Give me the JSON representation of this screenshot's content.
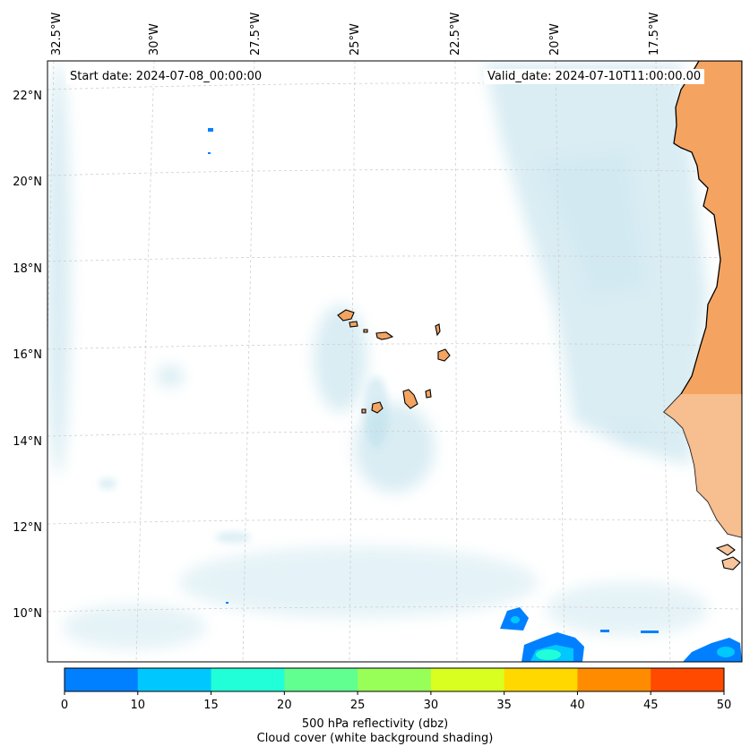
{
  "map": {
    "longitude_labels": [
      "32.5°W",
      "30°W",
      "27.5°W",
      "25°W",
      "22.5°W",
      "20°W",
      "17.5°W"
    ],
    "latitude_labels": [
      "22°N",
      "20°N",
      "18°N",
      "16°N",
      "14°N",
      "12°N",
      "10°N"
    ],
    "start_date": "Start date: 2024-07-08_00:00:00",
    "valid_date": "Valid_date: 2024-07-10T11:00:00.00"
  },
  "colorbar": {
    "ticks": [
      "0",
      "10",
      "15",
      "20",
      "25",
      "30",
      "35",
      "40",
      "45",
      "50"
    ],
    "colors": [
      "#0080ff",
      "#00c8ff",
      "#20ffd8",
      "#60ff90",
      "#98ff58",
      "#d8ff20",
      "#ffd800",
      "#ff8c00",
      "#ff4a00"
    ],
    "label": "500 hPa reflectivity (dbz)",
    "sublabel": "Cloud cover (white background shading)"
  },
  "colors": {
    "land": "#f4a460",
    "land_light": "#f8c49c",
    "cloud": "#add8e6",
    "coast": "#000000"
  }
}
